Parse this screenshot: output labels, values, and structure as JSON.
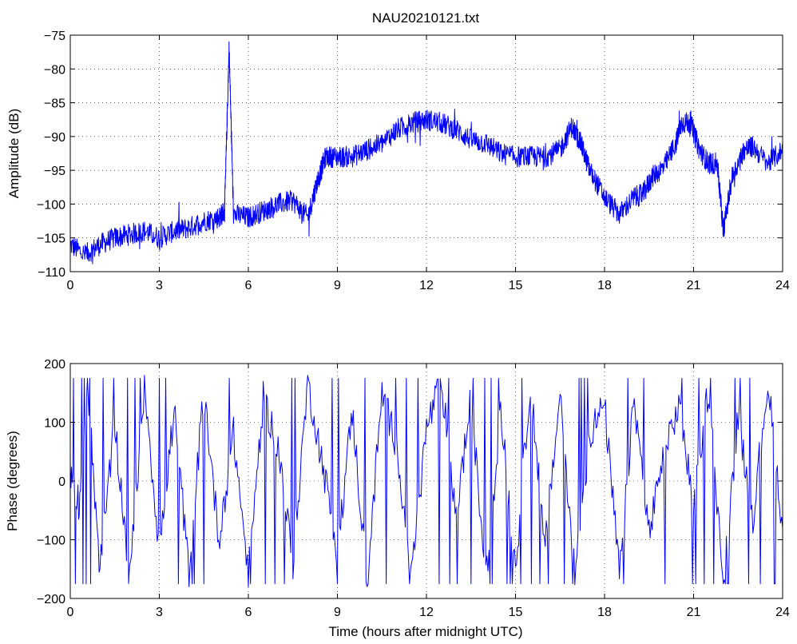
{
  "chart_data": [
    {
      "type": "line",
      "title": "NAU20210121.txt",
      "xlabel": "",
      "ylabel": "Amplitude (dB)",
      "xlim": [
        0,
        24
      ],
      "ylim": [
        -110,
        -75
      ],
      "xticks": [
        "0",
        "3",
        "6",
        "9",
        "12",
        "15",
        "18",
        "21",
        "24"
      ],
      "yticks": [
        "−75",
        "−80",
        "−85",
        "−90",
        "−95",
        "−100",
        "−105",
        "−110"
      ],
      "grid": true,
      "color": "#0000ff",
      "series": [
        {
          "x": [
            0,
            0.5,
            1,
            1.5,
            2,
            2.5,
            3,
            3.5,
            4,
            4.5,
            5,
            5.2,
            5.35,
            5.5,
            6,
            6.5,
            7,
            7.5,
            8,
            8.3,
            8.6,
            9,
            9.5,
            10,
            10.5,
            11,
            11.5,
            12,
            12.5,
            13,
            13.5,
            14,
            14.5,
            15,
            15.5,
            16,
            16.5,
            16.9,
            17.2,
            17.5,
            18,
            18.5,
            19,
            19.3,
            19.6,
            20,
            20.4,
            20.6,
            20.9,
            21.2,
            21.5,
            21.8,
            22,
            22.3,
            22.7,
            23,
            23.5,
            24
          ],
          "y": [
            -106,
            -107.5,
            -106,
            -105,
            -104.5,
            -104,
            -105,
            -104,
            -103.5,
            -102.5,
            -102,
            -101,
            -77,
            -101.5,
            -102,
            -101,
            -100,
            -99.5,
            -102,
            -97,
            -93,
            -93,
            -93,
            -92,
            -91,
            -89,
            -88,
            -87.5,
            -88,
            -89,
            -90.5,
            -91,
            -92.5,
            -93,
            -93,
            -93,
            -92,
            -88.5,
            -91,
            -95,
            -99,
            -101.5,
            -99,
            -98.5,
            -96,
            -94.5,
            -91,
            -88,
            -88,
            -92,
            -94,
            -94,
            -104,
            -96,
            -92,
            -91.5,
            -94,
            -92
          ]
        }
      ]
    },
    {
      "type": "line",
      "title": "",
      "xlabel": "Time (hours after midnight UTC)",
      "ylabel": "Phase (degrees)",
      "xlim": [
        0,
        24
      ],
      "ylim": [
        -200,
        200
      ],
      "xticks": [
        "0",
        "3",
        "6",
        "9",
        "12",
        "15",
        "18",
        "21",
        "24"
      ],
      "yticks": [
        "200",
        "100",
        "0",
        "−100",
        "−200"
      ],
      "grid": true,
      "color": "#0000ff",
      "series": [
        {
          "x": [
            0,
            0.3,
            0.6,
            1,
            1.5,
            2,
            2.5,
            3,
            3.5,
            4,
            4.5,
            5,
            5.5,
            6,
            6.5,
            7,
            7.5,
            8,
            8.5,
            9,
            9.5,
            10,
            10.5,
            11,
            11.5,
            12,
            12.5,
            13,
            13.5,
            14,
            14.5,
            15,
            15.5,
            16,
            16.5,
            17,
            17.5,
            18,
            18.5,
            19,
            19.5,
            20,
            20.5,
            21,
            21.5,
            22,
            22.5,
            23,
            23.5,
            24
          ],
          "y": [
            20,
            -40,
            150,
            -150,
            100,
            -170,
            170,
            -120,
            120,
            -160,
            160,
            -100,
            80,
            -160,
            140,
            60,
            -140,
            170,
            30,
            -120,
            120,
            -170,
            150,
            60,
            -160,
            90,
            170,
            -60,
            140,
            -170,
            120,
            -150,
            170,
            -110,
            150,
            -160,
            80,
            130,
            -160,
            140,
            -90,
            40,
            130,
            -40,
            160,
            -170,
            110,
            -60,
            170,
            -80
          ]
        }
      ]
    }
  ]
}
